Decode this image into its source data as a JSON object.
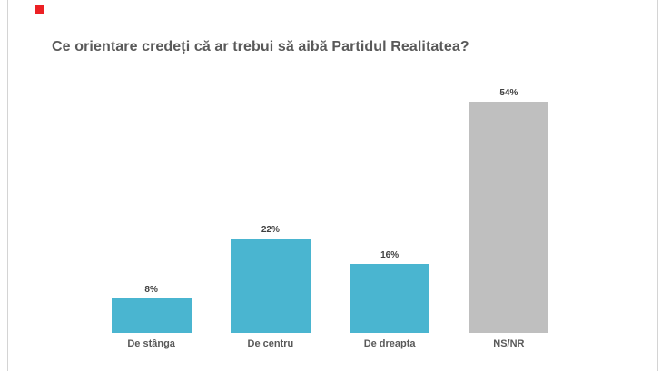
{
  "slide": {
    "background": "#FFFFFF",
    "border_color": "#D4D4D4",
    "marker_color": "#EC2024",
    "title_color": "#595959"
  },
  "chart_data": {
    "type": "bar",
    "title": "Ce orientare credeți că ar trebui să aibă Partidul Realitatea?",
    "categories": [
      "De stânga",
      "De centru",
      "De dreapta",
      "NS/NR"
    ],
    "values": [
      8,
      22,
      16,
      54
    ],
    "value_labels": [
      "8%",
      "22%",
      "16%",
      "54%"
    ],
    "bar_colors": [
      "#4AB5D0",
      "#4AB5D0",
      "#4AB5D0",
      "#BFBFBF"
    ],
    "accent_color": "#4AB5D0",
    "neutral_color": "#BFBFBF",
    "value_label_color": "#404040",
    "category_label_color": "#595959",
    "xlabel": "",
    "ylabel": "",
    "ylim": [
      0,
      58
    ],
    "grid": false,
    "legend": false,
    "axes": "hidden",
    "data_labels_position": "above-bar"
  }
}
